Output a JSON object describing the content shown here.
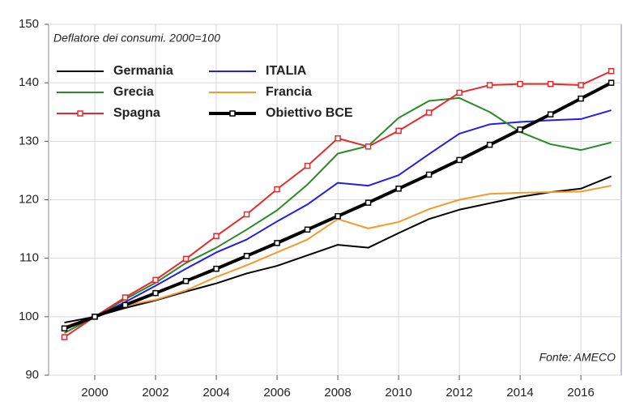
{
  "chart_data": {
    "type": "line",
    "annotations": [
      "Deflatore dei consumi. 2000=100",
      "Fonte: AMECO"
    ],
    "x": [
      1999,
      2000,
      2001,
      2002,
      2003,
      2004,
      2005,
      2006,
      2007,
      2008,
      2009,
      2010,
      2011,
      2012,
      2013,
      2014,
      2015,
      2016,
      2017
    ],
    "series": [
      {
        "name": "Germania",
        "color": "#000000",
        "values": [
          99,
          100,
          101.5,
          102.8,
          104.3,
          105.7,
          107.4,
          108.7,
          110.5,
          112.3,
          111.8,
          114.3,
          116.7,
          118.3,
          119.4,
          120.5,
          121.3,
          121.9,
          124
        ]
      },
      {
        "name": "ITALIA",
        "color": "#1f1fe6",
        "values": [
          97.8,
          100,
          102.5,
          105.3,
          108.2,
          111,
          113.2,
          116.3,
          119.2,
          122.9,
          122.4,
          124.2,
          127.8,
          131.3,
          132.9,
          133.3,
          133.6,
          133.8,
          135.3
        ]
      },
      {
        "name": "Grecia",
        "color": "#2a8a2a",
        "values": [
          97.2,
          100,
          103,
          105.8,
          109.2,
          111.8,
          114.9,
          118.2,
          122.6,
          127.9,
          129.2,
          134,
          136.9,
          137.4,
          135,
          131.6,
          129.5,
          128.5,
          129.8
        ]
      },
      {
        "name": "Francia",
        "color": "#f29a2e",
        "values": [
          98.3,
          100,
          101.9,
          102.9,
          104.5,
          106.8,
          108.8,
          111,
          113.2,
          116.7,
          115.1,
          116.2,
          118.4,
          120,
          121,
          121.2,
          121.3,
          121.4,
          122.4
        ]
      },
      {
        "name": "Spagna",
        "color": "#e8282a",
        "values": [
          96.5,
          100,
          103.3,
          106.3,
          109.9,
          113.8,
          117.5,
          121.8,
          125.8,
          130.5,
          129.1,
          131.8,
          134.9,
          138.3,
          139.6,
          139.8,
          139.8,
          139.6,
          142
        ]
      },
      {
        "name": "Obiettivo BCE",
        "color": "#000000",
        "values": [
          98,
          100,
          102,
          104.04,
          106.1,
          108.2,
          110.4,
          112.6,
          114.9,
          117.2,
          119.5,
          121.9,
          124.3,
          126.8,
          129.4,
          132,
          134.6,
          137.3,
          140
        ]
      }
    ],
    "xlim": [
      1998.48,
      2017.33
    ],
    "xticks": [
      2000,
      2002,
      2004,
      2006,
      2008,
      2010,
      2012,
      2014,
      2016
    ],
    "ylim": [
      90,
      150
    ],
    "yticks": [
      90,
      100,
      110,
      120,
      130,
      140,
      150
    ],
    "grid": true
  }
}
